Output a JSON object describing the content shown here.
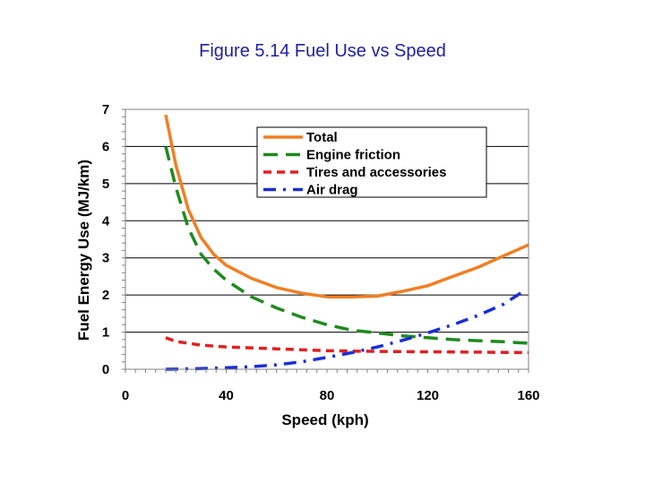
{
  "slide": {
    "title": "Figure 5.14 Fuel Use vs Speed"
  },
  "chart_data": {
    "type": "line",
    "title": "Figure 5.14 Fuel Use vs Speed",
    "xlabel": "Speed (kph)",
    "ylabel": "Fuel Energy Use (MJ/km)",
    "xlim": [
      0,
      160
    ],
    "ylim": [
      0,
      7
    ],
    "xticks": [
      "0",
      "40",
      "80",
      "120",
      "160"
    ],
    "yticks": [
      "0",
      "1",
      "2",
      "3",
      "4",
      "5",
      "6",
      "7"
    ],
    "grid": "horizontal",
    "legend": "top-right",
    "series": [
      {
        "name": "Total",
        "color": "#f07f23",
        "dash": "solid",
        "x": [
          16,
          20,
          25,
          30,
          35,
          40,
          50,
          60,
          70,
          80,
          90,
          100,
          110,
          120,
          130,
          140,
          150,
          160
        ],
        "y": [
          6.85,
          5.5,
          4.3,
          3.55,
          3.1,
          2.8,
          2.45,
          2.2,
          2.05,
          1.95,
          1.95,
          1.97,
          2.1,
          2.25,
          2.5,
          2.75,
          3.05,
          3.35
        ]
      },
      {
        "name": "Engine friction",
        "color": "#1e8a1e",
        "dash": "longdash",
        "x": [
          16,
          20,
          25,
          30,
          35,
          40,
          50,
          60,
          70,
          80,
          90,
          100,
          110,
          120,
          130,
          140,
          150,
          160
        ],
        "y": [
          6.0,
          4.9,
          3.8,
          3.1,
          2.7,
          2.4,
          1.95,
          1.65,
          1.4,
          1.2,
          1.05,
          0.98,
          0.9,
          0.85,
          0.8,
          0.77,
          0.74,
          0.7
        ]
      },
      {
        "name": "Tires and accessories",
        "color": "#e02020",
        "dash": "dash",
        "x": [
          16,
          20,
          30,
          40,
          60,
          80,
          100,
          120,
          140,
          160
        ],
        "y": [
          0.85,
          0.75,
          0.65,
          0.6,
          0.55,
          0.5,
          0.48,
          0.47,
          0.46,
          0.45
        ]
      },
      {
        "name": "Air drag",
        "color": "#1a2fd6",
        "dash": "dashdot",
        "x": [
          16,
          30,
          40,
          50,
          60,
          70,
          80,
          90,
          100,
          110,
          120,
          130,
          140,
          150,
          158
        ],
        "y": [
          0.0,
          0.02,
          0.04,
          0.07,
          0.12,
          0.2,
          0.32,
          0.45,
          0.6,
          0.78,
          0.98,
          1.2,
          1.45,
          1.75,
          2.1
        ]
      }
    ]
  }
}
